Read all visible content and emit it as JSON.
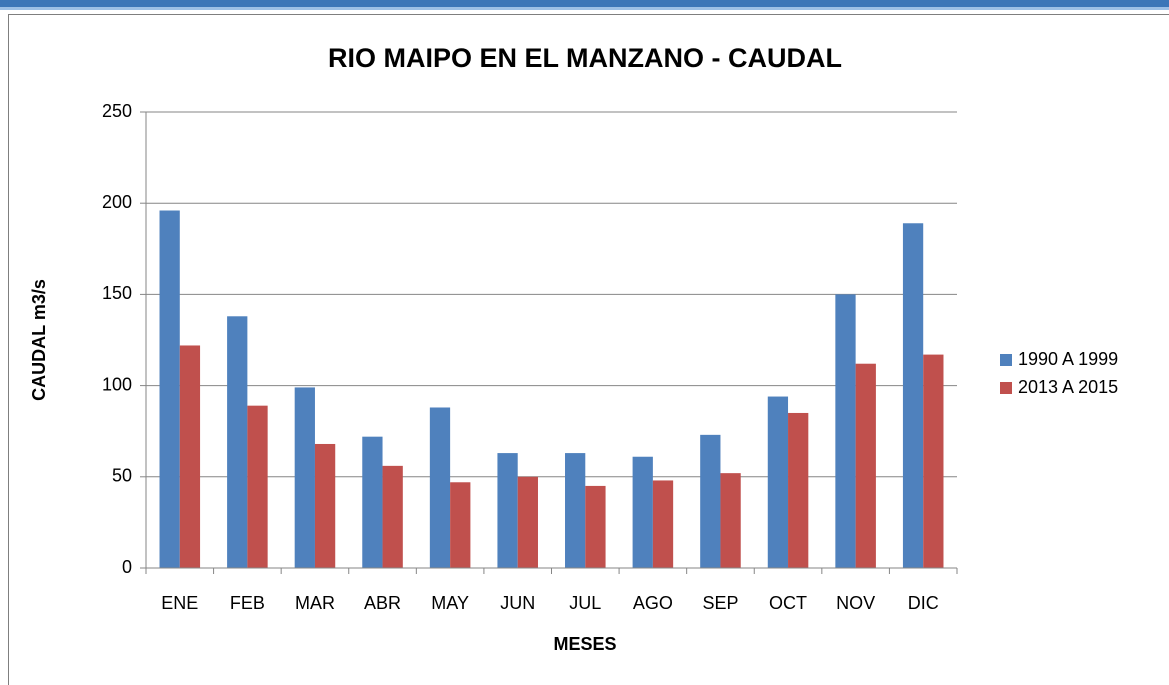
{
  "chart_data": {
    "type": "bar",
    "title": "RIO MAIPO EN EL MANZANO - CAUDAL",
    "x_label": "MESES",
    "y_label": "CAUDAL  m3/s",
    "categories": [
      "ENE",
      "FEB",
      "MAR",
      "ABR",
      "MAY",
      "JUN",
      "JUL",
      "AGO",
      "SEP",
      "OCT",
      "NOV",
      "DIC"
    ],
    "series": [
      {
        "name": "1990 A 1999",
        "color": "#4f81bd",
        "values": [
          196,
          138,
          99,
          72,
          88,
          63,
          63,
          61,
          73,
          94,
          150,
          189
        ]
      },
      {
        "name": "2013 A 2015",
        "color": "#c0504d",
        "values": [
          122,
          89,
          68,
          56,
          47,
          50,
          45,
          48,
          52,
          85,
          112,
          117
        ]
      }
    ],
    "ylim": [
      0,
      250
    ],
    "yticks": [
      0,
      50,
      100,
      150,
      200,
      250
    ],
    "grid": true,
    "legend": "right"
  }
}
